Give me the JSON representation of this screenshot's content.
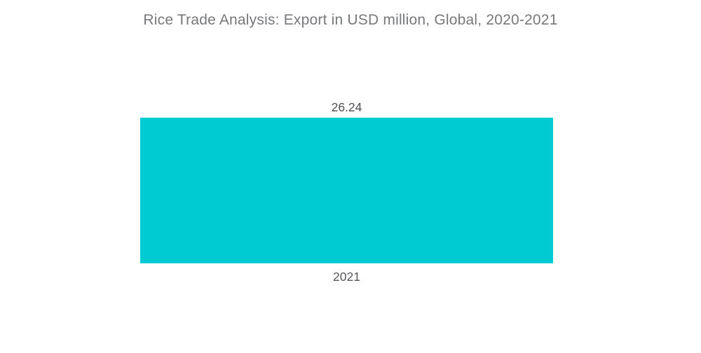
{
  "page": {
    "background_color": "#ffffff"
  },
  "chart_data": {
    "type": "bar",
    "title": "Rice Trade Analysis: Export in USD million, Global, 2020-2021",
    "categories": [
      "2021"
    ],
    "values": [
      26.24
    ],
    "value_labels": [
      "26.24"
    ],
    "xlabel": "",
    "ylabel": "",
    "ylim": [
      0,
      26.24
    ],
    "grid": false,
    "legend": false,
    "axes_visible": false,
    "bar_color": "#00cbd2",
    "title_color": "#77787b",
    "label_color": "#4c4e52"
  }
}
